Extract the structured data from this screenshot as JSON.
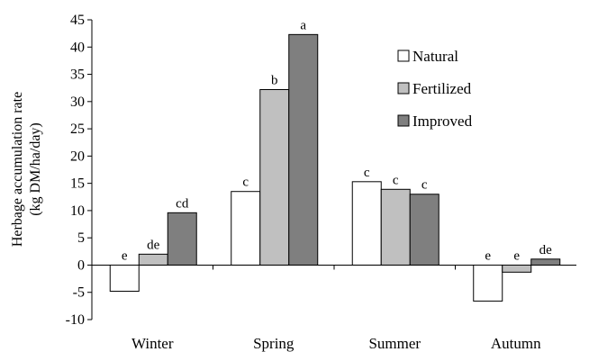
{
  "chart_data": {
    "type": "bar",
    "categories": [
      "Winter",
      "Spring",
      "Summer",
      "Autumn"
    ],
    "series": [
      {
        "name": "Natural",
        "color": "#ffffff",
        "values": [
          -4.8,
          13.5,
          15.3,
          -6.6
        ],
        "labels": [
          "e",
          "c",
          "c",
          "e"
        ]
      },
      {
        "name": "Fertilized",
        "color": "#c0c0c0",
        "values": [
          2.0,
          32.2,
          13.9,
          -1.3
        ],
        "labels": [
          "de",
          "b",
          "c",
          "e"
        ]
      },
      {
        "name": "Improved",
        "color": "#7f7f7f",
        "values": [
          9.6,
          42.3,
          13.0,
          1.1
        ],
        "labels": [
          "cd",
          "a",
          "c",
          "de"
        ]
      }
    ],
    "ylabel": [
      "Herbage accumulation rate",
      "(kg DM/ha/day)"
    ],
    "ylim": [
      -10,
      45
    ],
    "yticks": [
      -10,
      -5,
      0,
      5,
      10,
      15,
      20,
      25,
      30,
      35,
      40,
      45
    ],
    "ytick_labels": [
      "-10",
      "-5",
      "0",
      "5",
      "10",
      "15",
      "20",
      "25",
      "30",
      "35",
      "40",
      "45"
    ],
    "grid": false,
    "legend_position": "top-right"
  }
}
